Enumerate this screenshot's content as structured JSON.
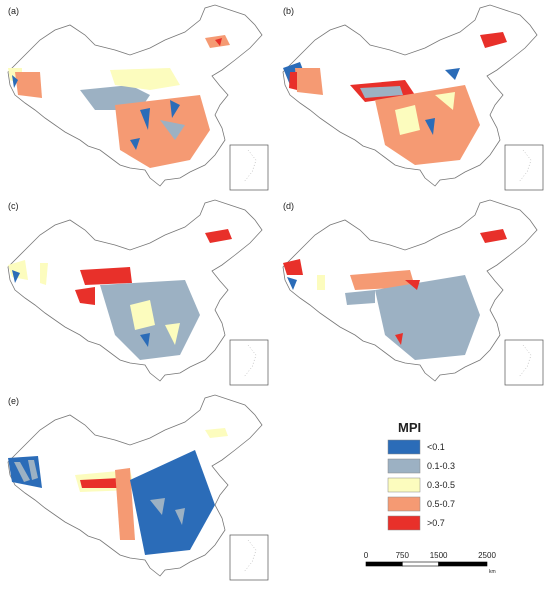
{
  "panels": [
    {
      "label": "(a)"
    },
    {
      "label": "(b)"
    },
    {
      "label": "(c)"
    },
    {
      "label": "(d)"
    },
    {
      "label": "(e)"
    }
  ],
  "legend": {
    "title": "MPI",
    "items": [
      {
        "label": "<0.1",
        "color": "#2b6cb8"
      },
      {
        "label": "0.1-0.3",
        "color": "#9cb1c3"
      },
      {
        "label": "0.3-0.5",
        "color": "#fcfcbe"
      },
      {
        "label": "0.5-0.7",
        "color": "#f59a73"
      },
      {
        "label": ">0.7",
        "color": "#e8302a"
      }
    ]
  },
  "scale_bar": {
    "ticks": [
      0,
      750,
      1500,
      2500
    ],
    "unit": "km"
  }
}
